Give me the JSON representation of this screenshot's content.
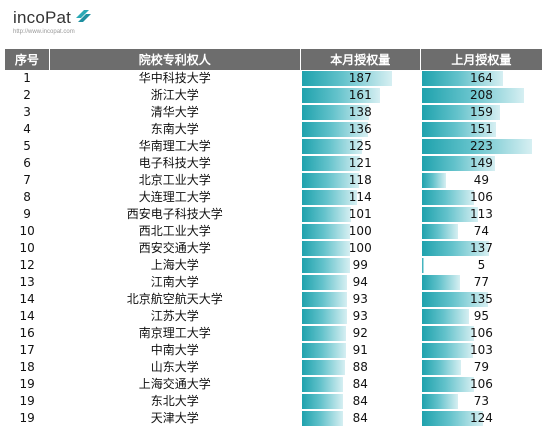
{
  "brand": {
    "name": "incoPat",
    "url": "http://www.incopat.com"
  },
  "table": {
    "headers": [
      "序号",
      "院校专利权人",
      "本月授权量",
      "上月授权量"
    ],
    "scale_max": 240,
    "rows": [
      {
        "rank": "1",
        "school": "华中科技大学",
        "current": 187,
        "previous": 164
      },
      {
        "rank": "2",
        "school": "浙江大学",
        "current": 161,
        "previous": 208
      },
      {
        "rank": "3",
        "school": "清华大学",
        "current": 138,
        "previous": 159
      },
      {
        "rank": "4",
        "school": "东南大学",
        "current": 136,
        "previous": 151
      },
      {
        "rank": "5",
        "school": "华南理工大学",
        "current": 125,
        "previous": 223
      },
      {
        "rank": "6",
        "school": "电子科技大学",
        "current": 121,
        "previous": 149
      },
      {
        "rank": "7",
        "school": "北京工业大学",
        "current": 118,
        "previous": 49
      },
      {
        "rank": "8",
        "school": "大连理工大学",
        "current": 114,
        "previous": 106
      },
      {
        "rank": "9",
        "school": "西安电子科技大学",
        "current": 101,
        "previous": 113
      },
      {
        "rank": "10",
        "school": "西北工业大学",
        "current": 100,
        "previous": 74
      },
      {
        "rank": "10",
        "school": "西安交通大学",
        "current": 100,
        "previous": 137
      },
      {
        "rank": "12",
        "school": "上海大学",
        "current": 99,
        "previous": 5
      },
      {
        "rank": "13",
        "school": "江南大学",
        "current": 94,
        "previous": 77
      },
      {
        "rank": "14",
        "school": "北京航空航天大学",
        "current": 93,
        "previous": 135
      },
      {
        "rank": "14",
        "school": "江苏大学",
        "current": 93,
        "previous": 95
      },
      {
        "rank": "16",
        "school": "南京理工大学",
        "current": 92,
        "previous": 106
      },
      {
        "rank": "17",
        "school": "中南大学",
        "current": 91,
        "previous": 103
      },
      {
        "rank": "18",
        "school": "山东大学",
        "current": 88,
        "previous": 79
      },
      {
        "rank": "19",
        "school": "上海交通大学",
        "current": 84,
        "previous": 106
      },
      {
        "rank": "19",
        "school": "东北大学",
        "current": 84,
        "previous": 73
      },
      {
        "rank": "19",
        "school": "天津大学",
        "current": 84,
        "previous": 124
      }
    ]
  }
}
